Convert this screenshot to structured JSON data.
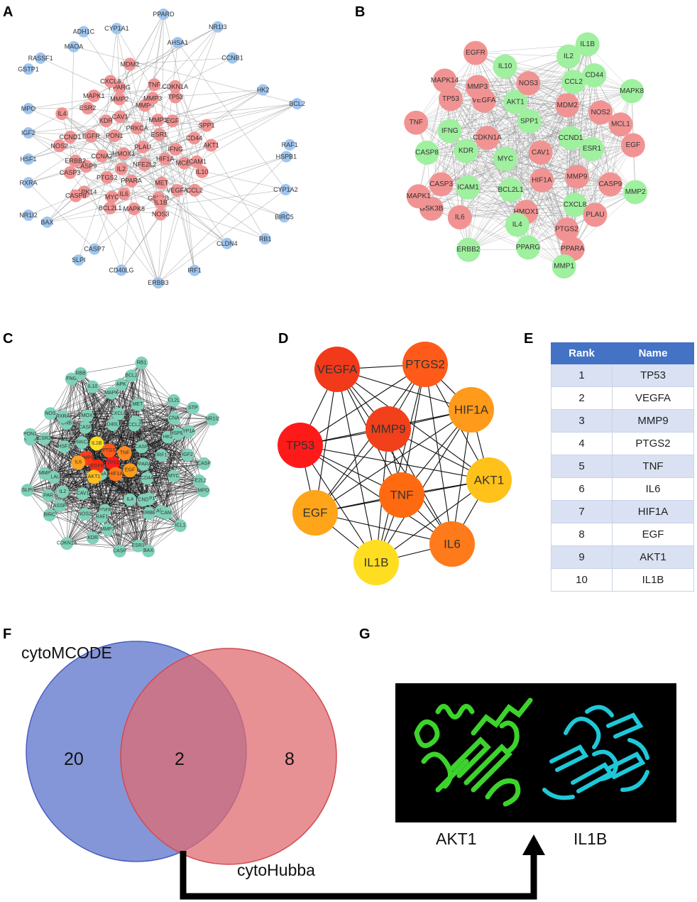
{
  "panels": {
    "a": "A",
    "b": "B",
    "c": "C",
    "d": "D",
    "e": "E",
    "f": "F",
    "g": "G"
  },
  "colors": {
    "node_red": "#f29393",
    "node_blue": "#9fc6ef",
    "node_green": "#9ff09f",
    "node_teal": "#7fd1b9",
    "table_header": "#4472c4",
    "venn_left": "#6a7fd0",
    "venn_right": "#e06b70",
    "protein_akt1": "#3cd32c",
    "protein_il1b": "#1fc8d8"
  },
  "panel_a": {
    "blue_nodes": [
      "PPARD",
      "AHSA1",
      "NR1I3",
      "CCNB1",
      "HK2",
      "BCL2",
      "RAF1",
      "HSPB1",
      "CYP1A2",
      "BIRC5",
      "RB1",
      "CLDN4",
      "IRF1",
      "ERBB3",
      "CD40LG",
      "CASP7",
      "SLPI",
      "BAX",
      "NR1I2",
      "RXRA",
      "HSF1",
      "IGF2",
      "MPO",
      "GSTP1",
      "RASSF1",
      "MAOA",
      "ADH1C",
      "CYP1A1"
    ],
    "red_nodes": [
      "PLAU",
      "HMOX1",
      "PRKCA",
      "NFE2L2",
      "PON1",
      "ESR1",
      "IL2",
      "CAV1",
      "HIF1A",
      "CCNA2",
      "MMP1",
      "PPARA",
      "KDR",
      "IFNG",
      "PTGS2",
      "MMP9",
      "MET",
      "EGFR",
      "EGF",
      "IL6",
      "MMP2",
      "MCL1",
      "CASP9",
      "MMP3",
      "GSK3B",
      "ESR2",
      "CD44",
      "MYC",
      "PPARG",
      "VEGFA",
      "ERBB2",
      "TP53",
      "MAPK8",
      "MAPK1",
      "ICAM1",
      "MAPK14",
      "TNF",
      "IL1B",
      "CCND1",
      "SPP1",
      "BCL2L1",
      "CXCL8",
      "IL10",
      "CASP3",
      "CDKN1A",
      "NOS3",
      "IL4",
      "AKT1",
      "CASP8",
      "MDM2",
      "CCL2",
      "NOS2"
    ]
  },
  "panel_b": {
    "green_nodes": [
      "IFNG",
      "SPP1",
      "MMP1",
      "IL4",
      "IL10",
      "IL2",
      "CCL2",
      "CXCL8",
      "KDR",
      "CD44",
      "MMP2",
      "IL1B",
      "BCL2L1",
      "ICAM1",
      "AKT1",
      "CASP8",
      "ERBB2",
      "MYC",
      "ESR1",
      "MAPK8",
      "PPARG",
      "CCND1"
    ],
    "red_nodes": [
      "NOS3",
      "MAPK14",
      "NOS2",
      "TP53",
      "PLAU",
      "IL6",
      "CASP3",
      "EGFR",
      "PTGS2",
      "PPARA",
      "HMOX1",
      "VEGFA",
      "EGF",
      "MCL1",
      "MMP3",
      "TNF",
      "MMP9",
      "HIF1A",
      "GSK3B",
      "CASP9",
      "CAV1",
      "CDKN1A",
      "MAPK1",
      "MDM2"
    ]
  },
  "panel_c": {
    "teal_nodes": [
      "PPARA",
      "AHSA1",
      "GSK3B",
      "SPP1",
      "PRKCA",
      "CASP",
      "EGFR",
      "CD40LG",
      "CD44",
      "PLAU",
      "CCL2",
      "IL4",
      "CASP",
      "IRF1",
      "CAV1",
      "CXCL8",
      "CND",
      "HSF1",
      "HK2",
      "RAF1",
      "MOX",
      "MYC",
      "IL2",
      "MET",
      "ERBB",
      "CNB",
      "HSPB1",
      "NOS2",
      "MAPK",
      "APK",
      "MMP",
      "CNA",
      "MMP1",
      "RXRA",
      "IGF2",
      "ASSF",
      "APK",
      "CAM",
      "CSR2",
      "YP1A",
      "KDR",
      "IL10",
      "FE2L2",
      "PAR",
      "CL2L",
      "ESR1",
      "NOS",
      "CASP",
      "BIRC",
      "BCL2",
      "ICL1",
      "IMPS",
      "STP",
      "CASP",
      "FNG",
      "MPO",
      "SLPI",
      "RB1",
      "BAX",
      "PON1",
      "NR1I2",
      "CDKN1A",
      "RBB"
    ],
    "hub_nodes": [
      {
        "label": "TP53",
        "color": "#ff1a1a"
      },
      {
        "label": "EGFR",
        "color": "#ff2a10"
      },
      {
        "label": "PTGS",
        "color": "#ff5a1a"
      },
      {
        "label": "HIF1A",
        "color": "#ff7a1a"
      },
      {
        "label": "MMP9",
        "color": "#ff3c1a"
      },
      {
        "label": "TNF",
        "color": "#ff8a20"
      },
      {
        "label": "AKT1",
        "color": "#ffc020"
      },
      {
        "label": "IL1B",
        "color": "#ffdd22"
      },
      {
        "label": "EGF",
        "color": "#ff9c1a"
      },
      {
        "label": "IL6",
        "color": "#ffa322"
      }
    ]
  },
  "panel_d": {
    "nodes": [
      {
        "label": "VEGFA",
        "color": "#f23a1a"
      },
      {
        "label": "PTGS2",
        "color": "#ff5a1a"
      },
      {
        "label": "HIF1A",
        "color": "#ff9a1a"
      },
      {
        "label": "MMP9",
        "color": "#f2401a"
      },
      {
        "label": "TP53",
        "color": "#ff1a1a"
      },
      {
        "label": "AKT1",
        "color": "#ffc21a"
      },
      {
        "label": "TNF",
        "color": "#ff6a10"
      },
      {
        "label": "EGF",
        "color": "#ffa51a"
      },
      {
        "label": "IL6",
        "color": "#ff7a1a"
      },
      {
        "label": "IL1B",
        "color": "#ffde22"
      }
    ]
  },
  "panel_e": {
    "headers": [
      "Rank",
      "Name"
    ],
    "rows": [
      {
        "rank": "1",
        "name": "TP53"
      },
      {
        "rank": "2",
        "name": "VEGFA"
      },
      {
        "rank": "3",
        "name": "MMP9"
      },
      {
        "rank": "4",
        "name": "PTGS2"
      },
      {
        "rank": "5",
        "name": "TNF"
      },
      {
        "rank": "6",
        "name": "IL6"
      },
      {
        "rank": "7",
        "name": "HIF1A"
      },
      {
        "rank": "8",
        "name": "EGF"
      },
      {
        "rank": "9",
        "name": "AKT1"
      },
      {
        "rank": "10",
        "name": "IL1B"
      }
    ]
  },
  "panel_f": {
    "left_label": "cytoMCODE",
    "right_label": "cytoHubba",
    "left_only": "20",
    "overlap": "2",
    "right_only": "8"
  },
  "panel_g": {
    "protein_left": "AKT1",
    "protein_right": "IL1B"
  }
}
